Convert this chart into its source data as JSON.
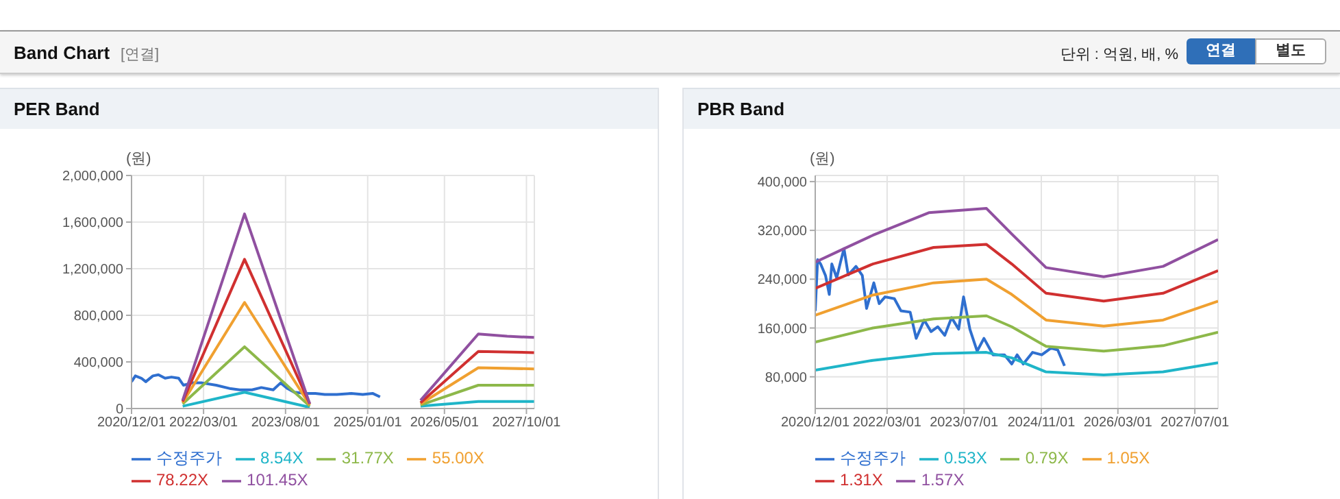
{
  "chart_data": [
    {
      "type": "line",
      "title": "PER Band",
      "ylabel": "(원)",
      "annotations": [
        "Band Chart",
        "[연결]",
        "단위 : 억원, 배, %",
        "연결",
        "별도"
      ],
      "xlim": [
        "2020-12-01",
        "2027-11-20"
      ],
      "xticks": [
        {
          "value": "2020-12-01",
          "label": "2020/12/01"
        },
        {
          "value": "2022-03-01",
          "label": "2022/03/01"
        },
        {
          "value": "2023-08-01",
          "label": "2023/08/01"
        },
        {
          "value": "2025-01-01",
          "label": "2025/01/01"
        },
        {
          "value": "2026-05-01",
          "label": "2026/05/01"
        },
        {
          "value": "2027-10-01",
          "label": "2027/10/01"
        }
      ],
      "ylim": [
        0,
        2000000
      ],
      "yticks": [
        0,
        {
          "value": 400000,
          "label": "400,000"
        },
        {
          "value": 800000,
          "label": "800,000"
        },
        {
          "value": 1200000,
          "label": "1,200,000"
        },
        {
          "value": 1600000,
          "label": "1,600,000"
        },
        {
          "value": 2000000,
          "label": "2,000,000"
        }
      ],
      "grid": true,
      "legend": "bottom",
      "series": [
        {
          "name": "수정주가",
          "color": "#2f6fcf",
          "x": [
            "2020-12-01",
            "2020-12-25",
            "2021-02-01",
            "2021-03-01",
            "2021-04-15",
            "2021-05-20",
            "2021-07-01",
            "2021-08-10",
            "2021-09-25",
            "2021-10-25",
            "2021-12-20",
            "2022-02-20",
            "2022-05-20",
            "2022-08-20",
            "2022-10-15",
            "2023-01-01",
            "2023-03-01",
            "2023-05-15",
            "2023-07-01",
            "2023-08-15",
            "2023-09-25",
            "2023-12-10",
            "2024-02-05",
            "2024-04-05",
            "2024-06-20",
            "2024-09-20",
            "2024-12-01",
            "2025-02-01",
            "2025-03-20"
          ],
          "values": [
            230000,
            280000,
            260000,
            230000,
            280000,
            290000,
            260000,
            270000,
            260000,
            200000,
            220000,
            220000,
            200000,
            170000,
            160000,
            160000,
            180000,
            160000,
            220000,
            170000,
            140000,
            130000,
            130000,
            120000,
            120000,
            130000,
            120000,
            130000,
            100000
          ]
        },
        {
          "name": "8.54X",
          "color": "#1fb5c8",
          "x": [
            "2021-10-20",
            "2022-11-15",
            "2024-01-01",
            "2025-01-01",
            "2025-12-01",
            "2026-12-01",
            "2027-11-18"
          ],
          "values": [
            20000,
            140000,
            10000,
            null,
            20000,
            60000,
            60000
          ]
        },
        {
          "name": "31.77X",
          "color": "#8db84a",
          "x": [
            "2021-10-20",
            "2022-11-15",
            "2024-01-01",
            "2025-01-01",
            "2025-12-01",
            "2026-12-01",
            "2027-11-18"
          ],
          "values": [
            40000,
            530000,
            20000,
            null,
            30000,
            200000,
            200000
          ]
        },
        {
          "name": "55.00X",
          "color": "#f0a030",
          "x": [
            "2021-10-20",
            "2022-11-15",
            "2024-01-01",
            "2025-01-01",
            "2025-12-01",
            "2026-12-01",
            "2027-11-18"
          ],
          "values": [
            50000,
            910000,
            30000,
            null,
            40000,
            350000,
            340000
          ]
        },
        {
          "name": "78.22X",
          "color": "#d03030",
          "x": [
            "2021-10-20",
            "2022-11-15",
            "2024-01-01",
            "2025-01-01",
            "2025-12-01",
            "2026-12-01",
            "2027-11-18"
          ],
          "values": [
            60000,
            1280000,
            40000,
            null,
            50000,
            490000,
            480000
          ]
        },
        {
          "name": "101.45X",
          "color": "#9050a0",
          "x": [
            "2021-10-20",
            "2022-11-15",
            "2024-01-01",
            "2025-01-01",
            "2025-12-01",
            "2026-12-01",
            "2027-06-01",
            "2027-11-18"
          ],
          "values": [
            70000,
            1670000,
            40000,
            null,
            70000,
            640000,
            620000,
            610000
          ]
        }
      ]
    },
    {
      "type": "line",
      "title": "PBR Band",
      "ylabel": "(원)",
      "xlim": [
        "2020-12-01",
        "2027-11-25"
      ],
      "xticks": [
        {
          "value": "2020-12-01",
          "label": "2020/12/01"
        },
        {
          "value": "2022-03-01",
          "label": "2022/03/01"
        },
        {
          "value": "2023-07-01",
          "label": "2023/07/01"
        },
        {
          "value": "2024-11-01",
          "label": "2024/11/01"
        },
        {
          "value": "2026-03-01",
          "label": "2026/03/01"
        },
        {
          "value": "2027-07-01",
          "label": "2027/07/01"
        }
      ],
      "ylim": [
        28000,
        410000
      ],
      "yticks": [
        {
          "value": 80000,
          "label": "80,000"
        },
        {
          "value": 160000,
          "label": "160,000"
        },
        {
          "value": 240000,
          "label": "240,000"
        },
        {
          "value": 320000,
          "label": "320,000"
        },
        {
          "value": 400000,
          "label": "400,000"
        }
      ],
      "grid": true,
      "legend": "bottom",
      "series": [
        {
          "name": "수정주가",
          "color": "#2f6fcf",
          "x": [
            "2020-12-01",
            "2020-12-16",
            "2021-01-04",
            "2021-02-04",
            "2021-02-28",
            "2021-03-16",
            "2021-04-16",
            "2021-05-10",
            "2021-06-01",
            "2021-06-28",
            "2021-08-16",
            "2021-09-25",
            "2021-10-22",
            "2021-12-07",
            "2022-01-10",
            "2022-02-16",
            "2022-04-16",
            "2022-05-28",
            "2022-07-25",
            "2022-09-01",
            "2022-10-22",
            "2022-12-04",
            "2023-01-16",
            "2023-03-01",
            "2023-04-13",
            "2023-05-28",
            "2023-06-28",
            "2023-08-07",
            "2023-09-22",
            "2023-11-04",
            "2024-01-01",
            "2024-03-13",
            "2024-04-28",
            "2024-06-01",
            "2024-07-10",
            "2024-09-07",
            "2024-11-04",
            "2025-01-01",
            "2025-02-13",
            "2025-03-28"
          ],
          "values": [
            188000,
            272000,
            265000,
            246000,
            215000,
            265000,
            242000,
            268000,
            290000,
            247000,
            261000,
            246000,
            192000,
            234000,
            200000,
            211000,
            208000,
            188000,
            186000,
            143000,
            173000,
            154000,
            162000,
            148000,
            177000,
            158000,
            211000,
            158000,
            122000,
            143000,
            116000,
            116000,
            101000,
            116000,
            101000,
            120000,
            116000,
            127000,
            124000,
            98000
          ]
        },
        {
          "name": "0.53X",
          "color": "#1fb5c8",
          "x": [
            "2020-12-01",
            "2021-12-01",
            "2022-12-20",
            "2023-11-20",
            "2024-04-28",
            "2024-12-01",
            "2025-12-01",
            "2026-12-12",
            "2027-11-25"
          ],
          "values": [
            91000,
            107000,
            118000,
            120000,
            111000,
            88000,
            83000,
            88000,
            103000
          ]
        },
        {
          "name": "0.79X",
          "color": "#8db84a",
          "x": [
            "2020-12-01",
            "2021-12-01",
            "2022-12-20",
            "2023-11-20",
            "2024-04-28",
            "2024-12-01",
            "2025-12-01",
            "2026-12-12",
            "2027-11-25"
          ],
          "values": [
            137000,
            160000,
            175000,
            180000,
            162000,
            130000,
            122000,
            131000,
            153000
          ]
        },
        {
          "name": "1.05X",
          "color": "#f0a030",
          "x": [
            "2020-12-01",
            "2021-12-01",
            "2022-12-20",
            "2023-11-20",
            "2024-04-28",
            "2024-12-01",
            "2025-12-01",
            "2026-12-12",
            "2027-11-25"
          ],
          "values": [
            181000,
            214000,
            234000,
            240000,
            215000,
            173000,
            163000,
            173000,
            204000
          ]
        },
        {
          "name": "1.31X",
          "color": "#d03030",
          "x": [
            "2020-12-01",
            "2021-12-01",
            "2022-12-20",
            "2023-11-20",
            "2024-04-28",
            "2024-12-01",
            "2025-12-01",
            "2026-12-12",
            "2027-11-25"
          ],
          "values": [
            225000,
            265000,
            292000,
            297000,
            265000,
            217000,
            204000,
            217000,
            254000
          ]
        },
        {
          "name": "1.57X",
          "color": "#9050a0",
          "x": [
            "2020-12-01",
            "2021-05-15",
            "2021-12-01",
            "2022-11-20",
            "2023-11-20",
            "2024-04-28",
            "2024-12-01",
            "2025-12-01",
            "2026-12-12",
            "2027-11-25"
          ],
          "values": [
            268000,
            288000,
            312000,
            349000,
            356000,
            314000,
            259000,
            244000,
            261000,
            305000
          ]
        }
      ]
    }
  ]
}
